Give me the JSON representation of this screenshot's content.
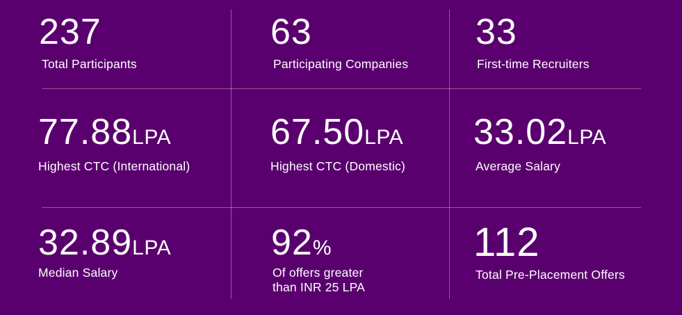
{
  "stats": {
    "total_participants": {
      "value": "237",
      "unit": "",
      "label": "Total Participants"
    },
    "participating_companies": {
      "value": "63",
      "unit": "",
      "label": "Participating Companies"
    },
    "first_time_recruiters": {
      "value": "33",
      "unit": "",
      "label": "First-time Recruiters"
    },
    "highest_ctc_international": {
      "value": "77.88",
      "unit": "LPA",
      "label": "Highest CTC (International)"
    },
    "highest_ctc_domestic": {
      "value": "67.50",
      "unit": "LPA",
      "label": "Highest CTC (Domestic)"
    },
    "average_salary": {
      "value": "33.02",
      "unit": "LPA",
      "label": "Average Salary"
    },
    "median_salary": {
      "value": "32.89",
      "unit": "LPA",
      "label": "Median Salary"
    },
    "offers_above_25": {
      "value": "92",
      "unit": "%",
      "label_line1": "Of offers greater",
      "label_line2": "than INR 25 LPA"
    },
    "pre_placement_offers": {
      "value": "112",
      "unit": "",
      "label": "Total Pre-Placement Offers"
    }
  },
  "colors": {
    "background": "#5a006e",
    "text": "#ffffff"
  }
}
